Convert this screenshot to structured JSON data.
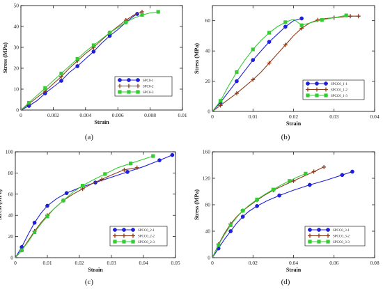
{
  "chart_data": [
    {
      "type": "line",
      "panel_label": "(a)",
      "xlabel": "Strain",
      "ylabel": "Stress (MPa)",
      "xlim": [
        0,
        0.01
      ],
      "ylim": [
        0,
        50
      ],
      "xticks": [
        "0",
        "0.002",
        "0.004",
        "0.006",
        "0.008",
        "0.01"
      ],
      "xtick_values": [
        0,
        0.002,
        0.004,
        0.006,
        0.008,
        0.01
      ],
      "yticks": [
        "0",
        "10",
        "20",
        "30",
        "40",
        "50"
      ],
      "ytick_values": [
        0,
        10,
        20,
        30,
        40,
        50
      ],
      "legend_position": "bottom-right",
      "series": [
        {
          "name": "SPC0-1",
          "marker": "circle",
          "color": "#1f1fe0",
          "x": [
            0,
            0.0005,
            0.001,
            0.0015,
            0.002,
            0.0025,
            0.003,
            0.0035,
            0.004,
            0.0045,
            0.005,
            0.0055,
            0.006,
            0.0065,
            0.007,
            0.0072
          ],
          "y": [
            0,
            2,
            4.5,
            8,
            11,
            14,
            18,
            21,
            24.5,
            28,
            32,
            35.5,
            38.5,
            42,
            45,
            46
          ]
        },
        {
          "name": "SPC0-2",
          "marker": "plus",
          "color": "#8b3a1a",
          "x": [
            0,
            0.0005,
            0.001,
            0.0015,
            0.002,
            0.0025,
            0.003,
            0.0035,
            0.004,
            0.0045,
            0.005,
            0.0055,
            0.006,
            0.0065,
            0.007,
            0.0075
          ],
          "y": [
            0,
            3,
            6,
            9,
            12.5,
            16,
            20,
            23.5,
            27,
            30,
            33.5,
            37,
            40,
            43,
            45.5,
            47
          ]
        },
        {
          "name": "SPC0-3",
          "marker": "square",
          "color": "#33cc33",
          "x": [
            0,
            0.0005,
            0.001,
            0.0015,
            0.002,
            0.0025,
            0.003,
            0.0035,
            0.004,
            0.0045,
            0.005,
            0.0055,
            0.006,
            0.0065,
            0.007,
            0.0075,
            0.008,
            0.0085
          ],
          "y": [
            0,
            3.5,
            7,
            10.5,
            14,
            17.5,
            21,
            24.5,
            28,
            31,
            34,
            37,
            39.5,
            42,
            44,
            45.5,
            46.5,
            47
          ]
        }
      ]
    },
    {
      "type": "line",
      "panel_label": "(b)",
      "xlabel": "Strain",
      "ylabel": "Stress (MPa)",
      "xlim": [
        0,
        0.04
      ],
      "ylim": [
        0,
        70
      ],
      "xticks": [
        "0",
        "0.01",
        "0.02",
        "0.03",
        "0.04"
      ],
      "xtick_values": [
        0,
        0.01,
        0.02,
        0.03,
        0.04
      ],
      "yticks": [
        "0",
        "20",
        "40",
        "60"
      ],
      "ytick_values": [
        0,
        20,
        40,
        60
      ],
      "legend_position": "bottom-right",
      "series": [
        {
          "name": "SPCC0_1-1",
          "marker": "circle",
          "color": "#1f1fe0",
          "x": [
            0,
            0.002,
            0.004,
            0.006,
            0.008,
            0.01,
            0.012,
            0.014,
            0.016,
            0.018,
            0.02,
            0.022
          ],
          "y": [
            0,
            6,
            13,
            20,
            27,
            34,
            40,
            46,
            51,
            56,
            60,
            61.5
          ]
        },
        {
          "name": "SPCC0_1-2",
          "marker": "plus",
          "color": "#8b3a1a",
          "x": [
            0,
            0.002,
            0.004,
            0.006,
            0.008,
            0.01,
            0.012,
            0.014,
            0.016,
            0.018,
            0.02,
            0.022,
            0.024,
            0.026,
            0.028,
            0.03,
            0.032,
            0.034,
            0.036
          ],
          "y": [
            0,
            4,
            8,
            12,
            16.5,
            21,
            26,
            32,
            38,
            44,
            50,
            55,
            58.5,
            60.5,
            61.5,
            62,
            62.5,
            63,
            63
          ]
        },
        {
          "name": "SPCC0_1-3",
          "marker": "square",
          "color": "#33cc33",
          "x": [
            0,
            0.002,
            0.004,
            0.006,
            0.008,
            0.01,
            0.012,
            0.014,
            0.016,
            0.018,
            0.02,
            0.022,
            0.024,
            0.027,
            0.03,
            0.033
          ],
          "y": [
            0,
            7,
            17,
            26,
            34,
            41,
            47,
            52,
            56,
            59,
            61,
            57,
            58.5,
            60.5,
            62,
            63.5
          ]
        }
      ]
    },
    {
      "type": "line",
      "panel_label": "(c)",
      "xlabel": "Strain",
      "ylabel": "Stress (MPa)",
      "xlim": [
        0,
        0.05
      ],
      "ylim": [
        0,
        100
      ],
      "xticks": [
        "0",
        "0.01",
        "0.02",
        "0.03",
        "0.04",
        "0.05"
      ],
      "xtick_values": [
        0,
        0.01,
        0.02,
        0.03,
        0.04,
        0.05
      ],
      "yticks": [
        "0",
        "20",
        "40",
        "60",
        "80",
        "100"
      ],
      "ytick_values": [
        0,
        20,
        40,
        60,
        80,
        100
      ],
      "legend_position": "bottom-right",
      "series": [
        {
          "name": "SPCC0_2-1",
          "marker": "circle",
          "color": "#1f1fe0",
          "x": [
            0,
            0.002,
            0.004,
            0.006,
            0.008,
            0.01,
            0.013,
            0.016,
            0.02,
            0.025,
            0.03,
            0.035,
            0.04,
            0.045,
            0.049
          ],
          "y": [
            0,
            10,
            22,
            33,
            42,
            49,
            56,
            61,
            66,
            71,
            76,
            81,
            86,
            92,
            97
          ]
        },
        {
          "name": "SPCC0_2-2",
          "marker": "plus",
          "color": "#8b3a1a",
          "x": [
            0,
            0.002,
            0.004,
            0.006,
            0.008,
            0.01,
            0.012,
            0.015,
            0.018,
            0.021,
            0.024,
            0.027,
            0.03,
            0.034,
            0.038
          ],
          "y": [
            0,
            7,
            16,
            25,
            33,
            40,
            46,
            54,
            60,
            65,
            70,
            74,
            78,
            83,
            85
          ]
        },
        {
          "name": "SPCC0_2-3",
          "marker": "square",
          "color": "#33cc33",
          "x": [
            0,
            0.002,
            0.004,
            0.006,
            0.008,
            0.01,
            0.012,
            0.015,
            0.018,
            0.021,
            0.024,
            0.028,
            0.032,
            0.036,
            0.04,
            0.043
          ],
          "y": [
            0,
            7,
            15,
            24,
            32,
            39,
            46,
            54,
            62,
            68,
            73,
            79,
            85,
            89,
            93,
            96
          ]
        }
      ]
    },
    {
      "type": "line",
      "panel_label": "(d)",
      "xlabel": "Strain",
      "ylabel": "Stress (MPa)",
      "xlim": [
        0,
        0.08
      ],
      "ylim": [
        0,
        160
      ],
      "xticks": [
        "0",
        "0.02",
        "0.04",
        "0.06",
        "0.08"
      ],
      "xtick_values": [
        0,
        0.02,
        0.04,
        0.06,
        0.08
      ],
      "yticks": [
        "0",
        "40",
        "80",
        "120",
        "160"
      ],
      "ytick_values": [
        0,
        40,
        80,
        120,
        160
      ],
      "legend_position": "bottom-right",
      "series": [
        {
          "name": "SPCC0_3-1",
          "marker": "circle",
          "color": "#1f1fe0",
          "x": [
            0,
            0.003,
            0.006,
            0.009,
            0.012,
            0.015,
            0.018,
            0.022,
            0.027,
            0.033,
            0.04,
            0.048,
            0.056,
            0.064,
            0.069
          ],
          "y": [
            0,
            14,
            28,
            40,
            52,
            62,
            70,
            78,
            86,
            94,
            102,
            110,
            117,
            125,
            130
          ]
        },
        {
          "name": "SPCC0_3-2",
          "marker": "plus",
          "color": "#8b3a1a",
          "x": [
            0,
            0.003,
            0.006,
            0.009,
            0.012,
            0.015,
            0.018,
            0.022,
            0.026,
            0.03,
            0.035,
            0.04,
            0.045,
            0.05,
            0.055
          ],
          "y": [
            0,
            20,
            37,
            51,
            62,
            71,
            78,
            87,
            95,
            102,
            109,
            116,
            123,
            130,
            137
          ]
        },
        {
          "name": "SPCC0_3-3",
          "marker": "square",
          "color": "#33cc33",
          "x": [
            0,
            0.003,
            0.006,
            0.009,
            0.012,
            0.015,
            0.018,
            0.022,
            0.026,
            0.03,
            0.034,
            0.038,
            0.042,
            0.046
          ],
          "y": [
            0,
            19,
            35,
            49,
            61,
            71,
            79,
            88,
            96,
            103,
            110,
            116,
            122,
            127
          ]
        }
      ]
    }
  ]
}
